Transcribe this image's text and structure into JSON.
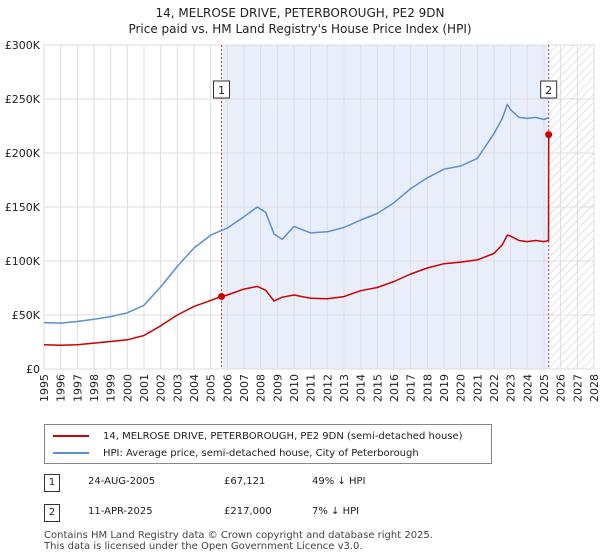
{
  "chart_data": {
    "type": "line",
    "title": "14, MELROSE DRIVE, PETERBOROUGH, PE2 9DN",
    "subtitle": "Price paid vs. HM Land Registry's House Price Index (HPI)",
    "xlim": [
      1995,
      2028
    ],
    "ylim": [
      0,
      300000
    ],
    "x_ticks": [
      "1995",
      "1996",
      "1997",
      "1998",
      "1999",
      "2000",
      "2001",
      "2002",
      "2003",
      "2004",
      "2005",
      "2006",
      "2007",
      "2008",
      "2009",
      "2010",
      "2011",
      "2012",
      "2013",
      "2014",
      "2015",
      "2016",
      "2017",
      "2018",
      "2019",
      "2020",
      "2021",
      "2022",
      "2023",
      "2024",
      "2025",
      "2026",
      "2027",
      "2028"
    ],
    "y_ticks": [
      {
        "value": 0,
        "label": "£0"
      },
      {
        "value": 50000,
        "label": "£50K"
      },
      {
        "value": 100000,
        "label": "£100K"
      },
      {
        "value": 150000,
        "label": "£150K"
      },
      {
        "value": 200000,
        "label": "£200K"
      },
      {
        "value": 250000,
        "label": "£250K"
      },
      {
        "value": 300000,
        "label": "£300K"
      }
    ],
    "grid": true,
    "shaded_region": [
      2005.65,
      2025.28
    ],
    "hatched_region": [
      2025.28,
      2028
    ],
    "series": [
      {
        "name": "14, MELROSE DRIVE, PETERBOROUGH, PE2 9DN (semi-detached house)",
        "color": "#cc0000",
        "x": [
          1995.0,
          1996.0,
          1997.0,
          1998.0,
          1999.0,
          2000.0,
          2001.0,
          2002.0,
          2003.0,
          2004.0,
          2005.0,
          2005.65,
          2006.0,
          2007.0,
          2007.8,
          2008.3,
          2008.8,
          2009.3,
          2010.0,
          2011.0,
          2012.0,
          2013.0,
          2014.0,
          2015.0,
          2016.0,
          2017.0,
          2018.0,
          2019.0,
          2020.0,
          2021.0,
          2022.0,
          2022.5,
          2022.8,
          2023.0,
          2023.5,
          2024.0,
          2024.5,
          2025.0,
          2025.27,
          2025.28
        ],
        "y": [
          22500,
          22000,
          22500,
          24000,
          25500,
          27000,
          31000,
          40000,
          50000,
          58000,
          63500,
          67121,
          68500,
          74000,
          76500,
          73000,
          63000,
          66500,
          68500,
          65500,
          65000,
          67000,
          72500,
          75500,
          81000,
          88000,
          93500,
          97500,
          99000,
          101000,
          107000,
          115000,
          124000,
          123000,
          119000,
          118000,
          119000,
          118000,
          119000,
          217000
        ]
      },
      {
        "name": "HPI: Average price, semi-detached house, City of Peterborough",
        "color": "#5b8fd1",
        "x": [
          1995.0,
          1996.0,
          1997.0,
          1998.0,
          1999.0,
          2000.0,
          2001.0,
          2002.0,
          2003.0,
          2004.0,
          2005.0,
          2006.0,
          2007.0,
          2007.8,
          2008.3,
          2008.8,
          2009.3,
          2010.0,
          2011.0,
          2012.0,
          2013.0,
          2014.0,
          2015.0,
          2016.0,
          2017.0,
          2018.0,
          2019.0,
          2020.0,
          2021.0,
          2022.0,
          2022.5,
          2022.8,
          2023.0,
          2023.5,
          2024.0,
          2024.5,
          2025.0,
          2025.3
        ],
        "y": [
          43000,
          42500,
          44000,
          46000,
          48500,
          52000,
          59000,
          76000,
          95000,
          112000,
          124000,
          130500,
          141000,
          150000,
          145000,
          125000,
          120000,
          132000,
          126000,
          127000,
          131000,
          138000,
          144000,
          154000,
          167000,
          177000,
          185000,
          188000,
          195000,
          218000,
          232000,
          245000,
          240000,
          233000,
          232000,
          233000,
          231000,
          233000
        ]
      }
    ],
    "sales": [
      {
        "label": "1",
        "x": 2005.65,
        "y": 67121,
        "date": "24-AUG-2005",
        "price": "£67,121",
        "hpi": "49% ↓ HPI"
      },
      {
        "label": "2",
        "x": 2025.28,
        "y": 217000,
        "date": "11-APR-2025",
        "price": "£217,000",
        "hpi": "7% ↓ HPI"
      }
    ]
  },
  "legend": {
    "property": "14, MELROSE DRIVE, PETERBOROUGH, PE2 9DN (semi-detached house)",
    "hpi": "HPI: Average price, semi-detached house, City of Peterborough"
  },
  "footer": {
    "line1": "Contains HM Land Registry data © Crown copyright and database right 2025.",
    "line2": "This data is licensed under the Open Government Licence v3.0."
  }
}
